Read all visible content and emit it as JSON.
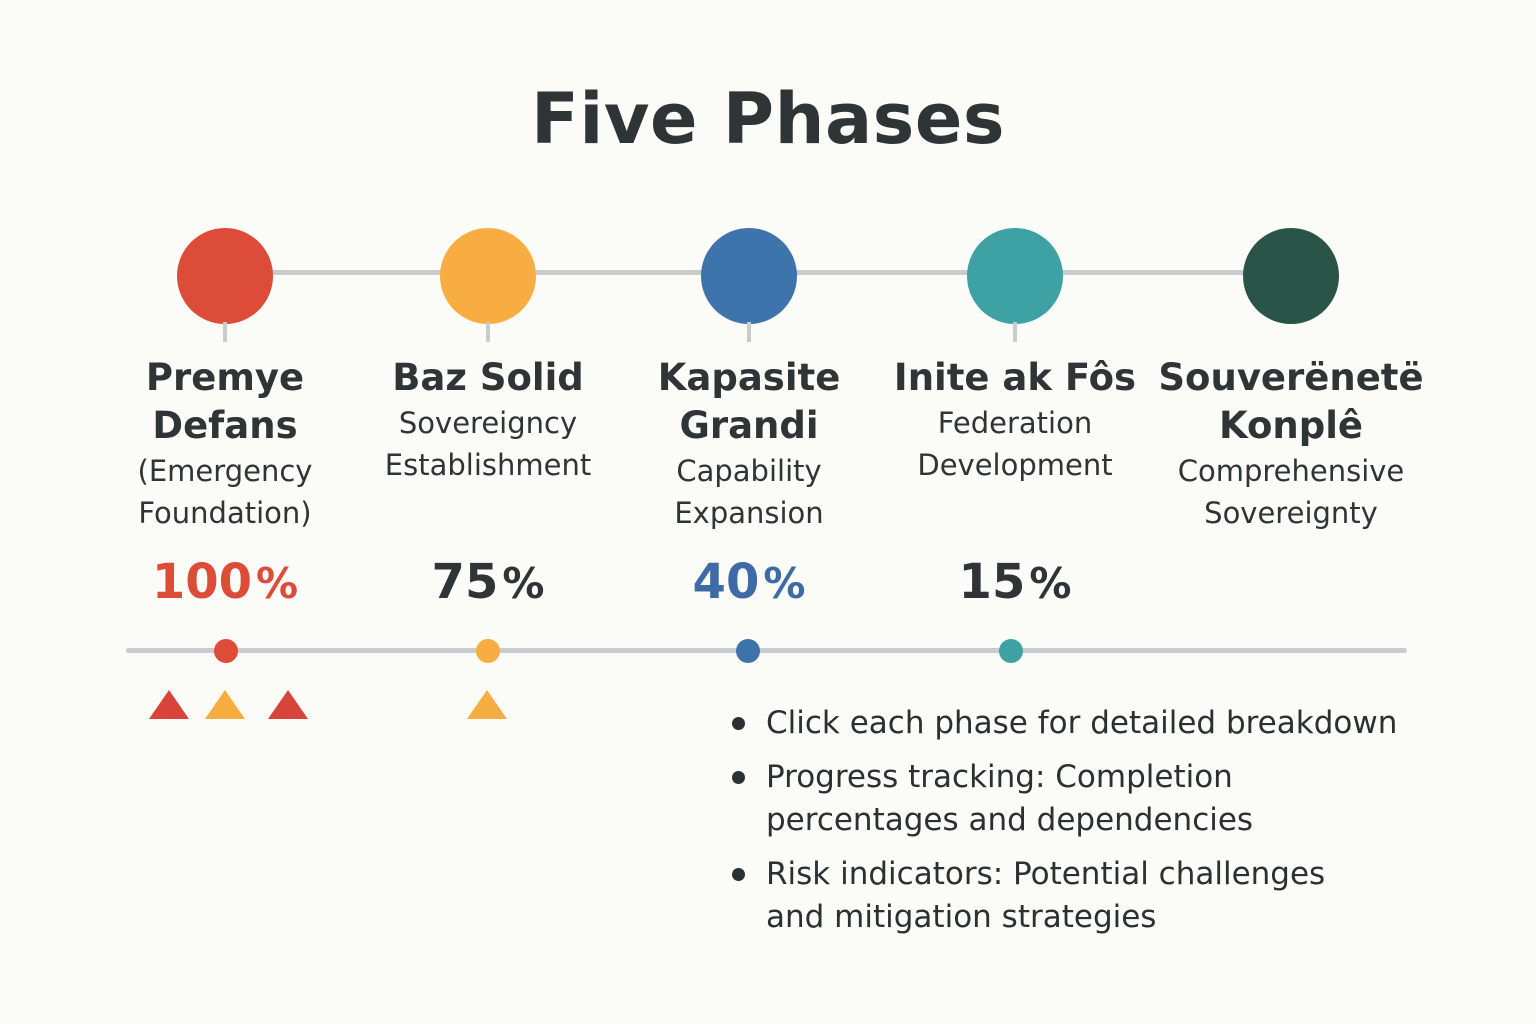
{
  "title": "Five Phases",
  "colors": {
    "red": "#dd4b39",
    "orange": "#f8ad43",
    "blue": "#3e74ac",
    "teal": "#3ea1a3",
    "dark_green": "#2b5448",
    "connector": "#c9ccce",
    "text": "#2f3436"
  },
  "phases": [
    {
      "name": "Premye\nDefans",
      "subtitle": "(Emergency\nFoundation)",
      "percent": "100",
      "percent_sign": "%",
      "color": "#dd4b39",
      "percent_color": "#dd4b39"
    },
    {
      "name": "Baz Solid",
      "subtitle": "Sovereigncy\nEstablishment",
      "percent": "75",
      "percent_sign": "%",
      "color": "#f8ad43",
      "percent_color": "#2f3436"
    },
    {
      "name": "Kapasite\nGrandi",
      "subtitle": "Capability\nExpansion",
      "percent": "40",
      "percent_sign": "%",
      "color": "#3e74ac",
      "percent_color": "#3e6aa6"
    },
    {
      "name": "Inite ak Fôs",
      "subtitle": "Federation\nDevelopment",
      "percent": "15",
      "percent_sign": "%",
      "color": "#3ea1a3",
      "percent_color": "#2f3436"
    },
    {
      "name": "Souverënetë\nKonplê",
      "subtitle": "Comprehensive\nSovereignty",
      "percent": "",
      "percent_sign": "",
      "color": "#2b5448",
      "percent_color": "#2f3436"
    }
  ],
  "progress_dots": [
    {
      "color": "#dd4b39"
    },
    {
      "color": "#f8ad43"
    },
    {
      "color": "#3e74ac"
    },
    {
      "color": "#3ea1a3"
    }
  ],
  "risk_indicators": [
    {
      "phase": 1,
      "color": "#d8433a"
    },
    {
      "phase": 1,
      "color": "#f5ad42"
    },
    {
      "phase": 1,
      "color": "#d8433a"
    },
    {
      "phase": 2,
      "color": "#f5ad42"
    }
  ],
  "bullets": [
    "Click each phase for detailed breakdown",
    "Progress tracking: Completion\npercentages and dependencies",
    "Risk indicators: Potential challenges\nand mitigation strategies"
  ]
}
